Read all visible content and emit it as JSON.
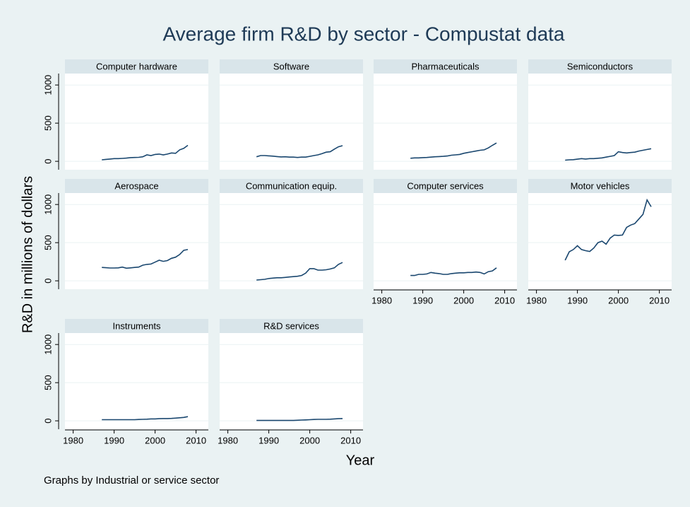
{
  "title": "Average firm R&D by sector - Compustat data",
  "ylabel": "R&D in millions of dollars",
  "xlabel": "Year",
  "note": "Graphs by Industrial or service sector",
  "chart_data": [
    {
      "type": "line",
      "title": "Computer hardware",
      "color": "#1a476f",
      "grid": true,
      "x": [
        1987,
        1988,
        1989,
        1990,
        1991,
        1992,
        1993,
        1994,
        1995,
        1996,
        1997,
        1998,
        1999,
        2000,
        2001,
        2002,
        2003,
        2004,
        2005,
        2006,
        2007,
        2008
      ],
      "values": [
        20,
        25,
        30,
        35,
        35,
        38,
        42,
        48,
        50,
        52,
        60,
        85,
        75,
        90,
        95,
        85,
        95,
        110,
        105,
        150,
        170,
        210
      ],
      "xlim": [
        1978,
        2013
      ],
      "ylim": [
        -110,
        1150
      ],
      "yticks": [
        0,
        500,
        1000
      ]
    },
    {
      "type": "line",
      "title": "Software",
      "color": "#1a476f",
      "grid": true,
      "x": [
        1987,
        1988,
        1989,
        1990,
        1991,
        1992,
        1993,
        1994,
        1995,
        1996,
        1997,
        1998,
        1999,
        2000,
        2001,
        2002,
        2003,
        2004,
        2005,
        2006,
        2007,
        2008
      ],
      "values": [
        60,
        75,
        75,
        72,
        68,
        62,
        58,
        60,
        55,
        55,
        50,
        55,
        55,
        65,
        75,
        85,
        100,
        120,
        125,
        160,
        190,
        205
      ],
      "xlim": [
        1978,
        2013
      ],
      "ylim": [
        -110,
        1150
      ]
    },
    {
      "type": "line",
      "title": "Pharmaceuticals",
      "color": "#1a476f",
      "grid": true,
      "x": [
        1987,
        1988,
        1989,
        1990,
        1991,
        1992,
        1993,
        1994,
        1995,
        1996,
        1997,
        1998,
        1999,
        2000,
        2001,
        2002,
        2003,
        2004,
        2005,
        2006,
        2007,
        2008
      ],
      "values": [
        40,
        45,
        45,
        48,
        50,
        55,
        60,
        62,
        65,
        70,
        80,
        85,
        90,
        105,
        115,
        125,
        135,
        145,
        150,
        175,
        210,
        240
      ],
      "xlim": [
        1978,
        2013
      ],
      "ylim": [
        -110,
        1150
      ]
    },
    {
      "type": "line",
      "title": "Semiconductors",
      "color": "#1a476f",
      "grid": true,
      "x": [
        1987,
        1988,
        1989,
        1990,
        1991,
        1992,
        1993,
        1994,
        1995,
        1996,
        1997,
        1998,
        1999,
        2000,
        2001,
        2002,
        2003,
        2004,
        2005,
        2006,
        2007,
        2008
      ],
      "values": [
        15,
        20,
        22,
        28,
        35,
        30,
        35,
        35,
        40,
        45,
        55,
        65,
        75,
        125,
        115,
        110,
        115,
        120,
        135,
        145,
        155,
        165
      ],
      "xlim": [
        1978,
        2013
      ],
      "ylim": [
        -110,
        1150
      ]
    },
    {
      "type": "line",
      "title": "Aerospace",
      "color": "#1a476f",
      "grid": true,
      "x": [
        1987,
        1988,
        1989,
        1990,
        1991,
        1992,
        1993,
        1994,
        1995,
        1996,
        1997,
        1998,
        1999,
        2000,
        2001,
        2002,
        2003,
        2004,
        2005,
        2006,
        2007,
        2008
      ],
      "values": [
        175,
        172,
        168,
        168,
        170,
        180,
        165,
        170,
        175,
        180,
        205,
        215,
        220,
        245,
        270,
        255,
        265,
        295,
        310,
        345,
        400,
        410
      ],
      "xlim": [
        1978,
        2013
      ],
      "ylim": [
        -110,
        1150
      ],
      "yticks": [
        0,
        500,
        1000
      ]
    },
    {
      "type": "line",
      "title": "Communication equip.",
      "color": "#1a476f",
      "grid": true,
      "x": [
        1987,
        1988,
        1989,
        1990,
        1991,
        1992,
        1993,
        1994,
        1995,
        1996,
        1997,
        1998,
        1999,
        2000,
        2001,
        2002,
        2003,
        2004,
        2005,
        2006,
        2007,
        2008
      ],
      "values": [
        10,
        15,
        20,
        30,
        35,
        40,
        40,
        45,
        50,
        55,
        60,
        70,
        100,
        160,
        160,
        140,
        140,
        145,
        155,
        170,
        215,
        240
      ],
      "xlim": [
        1978,
        2013
      ],
      "ylim": [
        -110,
        1150
      ]
    },
    {
      "type": "line",
      "title": "Computer services",
      "color": "#1a476f",
      "grid": true,
      "x": [
        1987,
        1988,
        1989,
        1990,
        1991,
        1992,
        1993,
        1994,
        1995,
        1996,
        1997,
        1998,
        1999,
        2000,
        2001,
        2002,
        2003,
        2004,
        2005,
        2006,
        2007,
        2008
      ],
      "values": [
        70,
        70,
        85,
        85,
        90,
        110,
        100,
        95,
        85,
        85,
        95,
        100,
        105,
        105,
        110,
        110,
        115,
        110,
        90,
        120,
        130,
        170
      ],
      "xlim": [
        1978,
        2013
      ],
      "ylim": [
        -110,
        1150
      ],
      "xticks": [
        1980,
        1990,
        2000,
        2010
      ]
    },
    {
      "type": "line",
      "title": "Motor vehicles",
      "color": "#1a476f",
      "grid": true,
      "x": [
        1987,
        1988,
        1989,
        1990,
        1991,
        1992,
        1993,
        1994,
        1995,
        1996,
        1997,
        1998,
        1999,
        2000,
        2001,
        2002,
        2003,
        2004,
        2005,
        2006,
        2007,
        2008
      ],
      "values": [
        270,
        380,
        410,
        460,
        410,
        395,
        385,
        430,
        500,
        520,
        480,
        560,
        600,
        595,
        600,
        700,
        730,
        750,
        810,
        870,
        1060,
        970
      ],
      "xlim": [
        1978,
        2013
      ],
      "ylim": [
        -110,
        1150
      ],
      "xticks": [
        1980,
        1990,
        2000,
        2010
      ]
    },
    {
      "type": "line",
      "title": "Instruments",
      "color": "#1a476f",
      "grid": true,
      "x": [
        1987,
        1988,
        1989,
        1990,
        1991,
        1992,
        1993,
        1994,
        1995,
        1996,
        1997,
        1998,
        1999,
        2000,
        2001,
        2002,
        2003,
        2004,
        2005,
        2006,
        2007,
        2008
      ],
      "values": [
        15,
        15,
        15,
        15,
        15,
        15,
        15,
        15,
        15,
        18,
        20,
        22,
        25,
        25,
        28,
        30,
        30,
        32,
        35,
        40,
        45,
        55
      ],
      "xlim": [
        1978,
        2013
      ],
      "ylim": [
        -110,
        1150
      ],
      "yticks": [
        0,
        500,
        1000
      ],
      "xticks": [
        1980,
        1990,
        2000,
        2010
      ]
    },
    {
      "type": "line",
      "title": "R&D services",
      "color": "#1a476f",
      "grid": true,
      "x": [
        1987,
        1988,
        1989,
        1990,
        1991,
        1992,
        1993,
        1994,
        1995,
        1996,
        1997,
        1998,
        1999,
        2000,
        2001,
        2002,
        2003,
        2004,
        2005,
        2006,
        2007,
        2008
      ],
      "values": [
        5,
        5,
        5,
        5,
        5,
        5,
        5,
        5,
        5,
        5,
        8,
        10,
        12,
        15,
        18,
        20,
        20,
        20,
        22,
        25,
        28,
        30
      ],
      "xlim": [
        1978,
        2013
      ],
      "ylim": [
        -110,
        1150
      ],
      "xticks": [
        1980,
        1990,
        2000,
        2010
      ]
    }
  ]
}
